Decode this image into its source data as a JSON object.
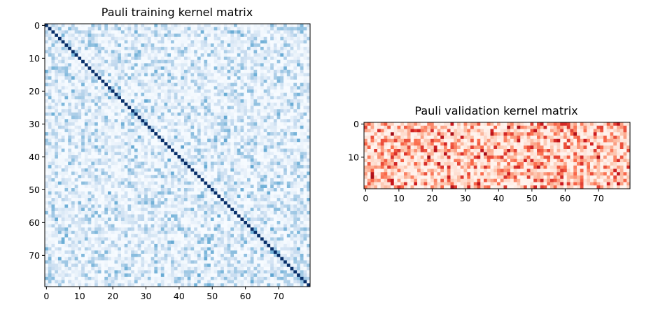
{
  "chart_data": [
    {
      "type": "heatmap",
      "title": "Pauli training kernel matrix",
      "rows": 80,
      "cols": 80,
      "colormap": "Blues",
      "colormap_colors": [
        "#f7fbff",
        "#c6dbef",
        "#6baed6",
        "#2171b5",
        "#08306b"
      ],
      "value_range": [
        0,
        1
      ],
      "diagonal_value": 1.0,
      "off_diagonal_typical_range": [
        0.0,
        0.55
      ],
      "xticks": [
        0,
        10,
        20,
        30,
        40,
        50,
        60,
        70
      ],
      "yticks": [
        0,
        10,
        20,
        30,
        40,
        50,
        60,
        70
      ],
      "xlim": [
        -0.5,
        79.5
      ],
      "ylim": [
        79.5,
        -0.5
      ],
      "grid": false,
      "legend": "none"
    },
    {
      "type": "heatmap",
      "title": "Pauli validation kernel matrix",
      "rows": 20,
      "cols": 80,
      "colormap": "Reds",
      "colormap_colors": [
        "#fff5f0",
        "#fcbba1",
        "#fb6a4a",
        "#cb181d",
        "#67000d"
      ],
      "value_range": [
        0,
        1
      ],
      "off_diagonal_typical_range": [
        0.0,
        0.9
      ],
      "xticks": [
        0,
        10,
        20,
        30,
        40,
        50,
        60,
        70
      ],
      "yticks": [
        0,
        10
      ],
      "xlim": [
        -0.5,
        79.5
      ],
      "ylim": [
        19.5,
        -0.5
      ],
      "grid": false,
      "legend": "none"
    }
  ]
}
